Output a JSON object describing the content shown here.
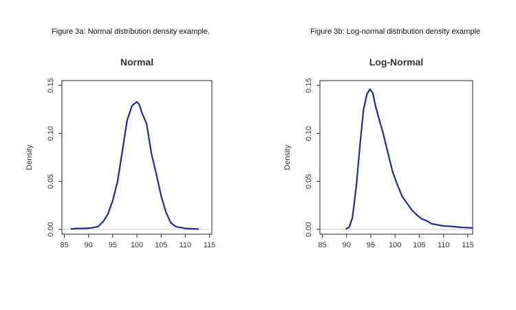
{
  "figures": [
    {
      "caption": "Figure 3a: Normal distribution density example."
    },
    {
      "caption": "Figure 3b: Log-normal distribution density example"
    }
  ],
  "chart_data": [
    {
      "type": "line",
      "title": "Normal",
      "xlabel": "",
      "ylabel": "Density",
      "xlim": [
        84.5,
        115.5
      ],
      "ylim": [
        -0.005,
        0.155
      ],
      "xticks": [
        85,
        90,
        95,
        100,
        105,
        110,
        115
      ],
      "yticks": [
        0.0,
        0.05,
        0.1,
        0.15
      ],
      "ytick_labels": [
        "0.00",
        "0.05",
        "0.10",
        "0.15"
      ],
      "baseline": 0,
      "line_color": "#1a2a9c",
      "series": [
        {
          "x": [
            86.3,
            87.5,
            89,
            90.5,
            92,
            93,
            94,
            95,
            96,
            97,
            98,
            99,
            100,
            100.5,
            101,
            102,
            103,
            104,
            105,
            106,
            107,
            108,
            109,
            110,
            111,
            112,
            112.8
          ],
          "y": [
            0.0005,
            0.001,
            0.001,
            0.0015,
            0.003,
            0.008,
            0.016,
            0.03,
            0.05,
            0.082,
            0.114,
            0.129,
            0.133,
            0.13,
            0.122,
            0.11,
            0.079,
            0.058,
            0.035,
            0.018,
            0.007,
            0.003,
            0.002,
            0.001,
            0.0008,
            0.0005,
            0.0003
          ]
        }
      ]
    },
    {
      "type": "line",
      "title": "Log-Normal",
      "xlabel": "",
      "ylabel": "Density",
      "xlim": [
        84.5,
        116
      ],
      "ylim": [
        -0.005,
        0.155
      ],
      "xticks": [
        85,
        90,
        95,
        100,
        105,
        110,
        115
      ],
      "yticks": [
        0.0,
        0.05,
        0.1,
        0.15
      ],
      "ytick_labels": [
        "0.00",
        "0.05",
        "0.10",
        "0.15"
      ],
      "baseline": 0,
      "line_color": "#1a2a9c",
      "series": [
        {
          "x": [
            89.8,
            90.5,
            91.2,
            92,
            92.8,
            93.5,
            94.2,
            94.8,
            95.4,
            96,
            96.8,
            97.5,
            98.5,
            99.5,
            100.5,
            101.5,
            102.5,
            103.5,
            104.5,
            105.5,
            106.5,
            107.5,
            108.5,
            109.5,
            110.5,
            112,
            114,
            116
          ],
          "y": [
            0.0005,
            0.002,
            0.012,
            0.045,
            0.09,
            0.125,
            0.141,
            0.146,
            0.142,
            0.128,
            0.113,
            0.101,
            0.08,
            0.06,
            0.046,
            0.034,
            0.027,
            0.02,
            0.015,
            0.011,
            0.009,
            0.006,
            0.005,
            0.004,
            0.0035,
            0.003,
            0.002,
            0.0015
          ]
        }
      ]
    }
  ]
}
